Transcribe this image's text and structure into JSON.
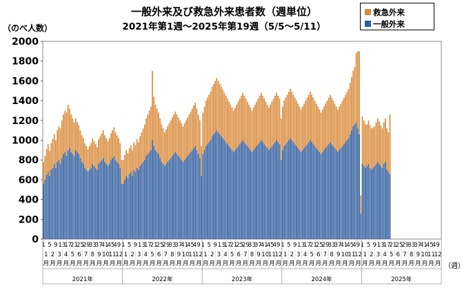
{
  "title": "一般外来及び救急外来患者数（週単位）",
  "subtitle": "2021年第1週～2025年第19週（5/5～5/11）",
  "ylabel": "（のべ人数）",
  "unit_label": "（週）",
  "legend": [
    {
      "name": "救急外来",
      "color": "#d98b3a"
    },
    {
      "name": "一般外来",
      "color": "#2f5d9e"
    }
  ],
  "chart_data": {
    "type": "bar",
    "stacked": true,
    "ylim": [
      0,
      2000
    ],
    "yticks": [
      0,
      200,
      400,
      600,
      800,
      1000,
      1200,
      1400,
      1600,
      1800,
      2000
    ],
    "grid": false,
    "legend_position": "top-right",
    "weeks_per_year": 52,
    "year_labels": [
      "2021年",
      "2022年",
      "2023年",
      "2024年",
      "2025年"
    ],
    "week_tick_labels": [
      "1",
      "5",
      "9",
      "13",
      "17",
      "21",
      "25",
      "29",
      "33",
      "37",
      "41",
      "45",
      "49"
    ],
    "month_labels": [
      "1月",
      "2月",
      "3月",
      "4月",
      "5月",
      "6月",
      "7月",
      "8月",
      "9月",
      "10月",
      "11月",
      "12月"
    ],
    "x_label": "週",
    "series": [
      {
        "name": "一般外来",
        "values": [
          560,
          600,
          650,
          680,
          640,
          700,
          720,
          760,
          720,
          780,
          800,
          760,
          820,
          860,
          880,
          840,
          900,
          920,
          880,
          860,
          840,
          900,
          880,
          860,
          820,
          780,
          760,
          720,
          700,
          680,
          700,
          720,
          760,
          740,
          720,
          700,
          760,
          780,
          800,
          820,
          780,
          760,
          740,
          760,
          800,
          820,
          840,
          800,
          780,
          760,
          720,
          560,
          560,
          600,
          640,
          620,
          660,
          680,
          640,
          700,
          680,
          720,
          700,
          740,
          760,
          780,
          800,
          840,
          860,
          880,
          900,
          1000,
          940,
          900,
          880,
          860,
          820,
          780,
          760,
          740,
          760,
          780,
          800,
          820,
          840,
          860,
          880,
          860,
          840,
          820,
          800,
          780,
          800,
          820,
          840,
          860,
          880,
          900,
          920,
          940,
          900,
          860,
          820,
          640,
          860,
          900,
          940,
          960,
          980,
          1000,
          1040,
          1060,
          1080,
          1100,
          1080,
          1060,
          1040,
          1020,
          1000,
          980,
          960,
          940,
          920,
          900,
          880,
          900,
          920,
          940,
          960,
          980,
          1000,
          980,
          960,
          940,
          920,
          900,
          880,
          900,
          920,
          940,
          960,
          980,
          1000,
          980,
          960,
          940,
          920,
          900,
          920,
          940,
          960,
          980,
          1000,
          980,
          960,
          800,
          900,
          940,
          960,
          980,
          1000,
          1020,
          1000,
          980,
          960,
          940,
          920,
          900,
          880,
          900,
          920,
          940,
          960,
          980,
          1000,
          980,
          960,
          940,
          920,
          900,
          880,
          860,
          880,
          900,
          920,
          940,
          960,
          980,
          960,
          940,
          920,
          900,
          880,
          900,
          920,
          940,
          960,
          980,
          1000,
          1020,
          1060,
          1100,
          1140,
          1160,
          1180,
          1120,
          1060,
          260,
          760,
          740,
          720,
          740,
          760,
          720,
          700,
          720,
          740,
          760,
          780,
          760,
          740,
          720,
          760,
          780,
          700,
          680,
          660
        ],
        "color": "#2f5d9e"
      },
      {
        "name": "救急外来",
        "values": [
          220,
          240,
          260,
          280,
          250,
          270,
          290,
          300,
          280,
          320,
          340,
          360,
          380,
          400,
          420,
          440,
          460,
          400,
          380,
          360,
          340,
          320,
          300,
          290,
          280,
          270,
          260,
          250,
          240,
          230,
          240,
          250,
          260,
          250,
          240,
          230,
          250,
          260,
          270,
          280,
          270,
          260,
          250,
          260,
          270,
          280,
          290,
          280,
          270,
          260,
          250,
          240,
          240,
          250,
          260,
          250,
          260,
          270,
          260,
          280,
          270,
          290,
          280,
          300,
          320,
          340,
          360,
          380,
          400,
          420,
          440,
          700,
          500,
          460,
          440,
          420,
          400,
          380,
          360,
          340,
          350,
          360,
          370,
          380,
          390,
          400,
          410,
          400,
          390,
          380,
          370,
          360,
          370,
          380,
          390,
          400,
          410,
          420,
          430,
          440,
          420,
          400,
          380,
          300,
          420,
          440,
          460,
          470,
          480,
          490,
          500,
          510,
          520,
          530,
          520,
          510,
          500,
          490,
          480,
          470,
          460,
          450,
          440,
          430,
          420,
          430,
          440,
          450,
          460,
          470,
          480,
          470,
          460,
          450,
          440,
          430,
          420,
          430,
          440,
          450,
          460,
          470,
          480,
          470,
          460,
          450,
          440,
          430,
          440,
          450,
          460,
          470,
          480,
          470,
          460,
          420,
          440,
          460,
          470,
          480,
          490,
          500,
          490,
          480,
          470,
          460,
          450,
          440,
          430,
          440,
          450,
          460,
          470,
          480,
          490,
          480,
          470,
          460,
          450,
          440,
          430,
          420,
          430,
          440,
          450,
          460,
          470,
          480,
          470,
          460,
          450,
          440,
          430,
          440,
          450,
          460,
          470,
          480,
          490,
          500,
          520,
          540,
          560,
          580,
          700,
          780,
          840,
          180,
          480,
          460,
          440,
          420,
          440,
          430,
          420,
          410,
          400,
          420,
          440,
          430,
          410,
          400,
          420,
          440,
          420,
          400,
          600
        ],
        "color": "#d98b3a"
      }
    ]
  }
}
